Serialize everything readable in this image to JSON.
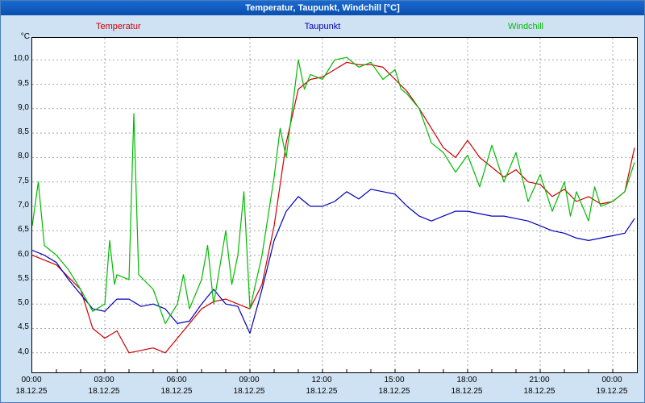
{
  "window": {
    "title": "Temperatur, Taupunkt, Windchill [°C]"
  },
  "chart_data": {
    "type": "line",
    "title": "Temperatur, Taupunkt, Windchill [°C]",
    "y_unit": "°C",
    "grid": "dashed",
    "legend_position": "top",
    "xlim": [
      0,
      25
    ],
    "ylim": [
      3.6,
      10.45
    ],
    "y_ticks": [
      {
        "value": 10.0,
        "label": "10,0"
      },
      {
        "value": 9.5,
        "label": "9,5"
      },
      {
        "value": 9.0,
        "label": "9,0"
      },
      {
        "value": 8.5,
        "label": "8,5"
      },
      {
        "value": 8.0,
        "label": "8,0"
      },
      {
        "value": 7.5,
        "label": "7,5"
      },
      {
        "value": 7.0,
        "label": "7,0"
      },
      {
        "value": 6.5,
        "label": "6,5"
      },
      {
        "value": 6.0,
        "label": "6,0"
      },
      {
        "value": 5.5,
        "label": "5,5"
      },
      {
        "value": 5.0,
        "label": "5,0"
      },
      {
        "value": 4.5,
        "label": "4,5"
      },
      {
        "value": 4.0,
        "label": "4,0"
      }
    ],
    "x_ticks": [
      {
        "hour": 0,
        "time": "00:00",
        "date": "18.12.25"
      },
      {
        "hour": 3,
        "time": "03:00",
        "date": "18.12.25"
      },
      {
        "hour": 6,
        "time": "06:00",
        "date": "18.12.25"
      },
      {
        "hour": 9,
        "time": "09:00",
        "date": "18.12.25"
      },
      {
        "hour": 12,
        "time": "12:00",
        "date": "18.12.25"
      },
      {
        "hour": 15,
        "time": "15:00",
        "date": "18.12.25"
      },
      {
        "hour": 18,
        "time": "18:00",
        "date": "18.12.25"
      },
      {
        "hour": 21,
        "time": "21:00",
        "date": "18.12.25"
      },
      {
        "hour": 24,
        "time": "00:00",
        "date": "19.12.25"
      }
    ],
    "series": [
      {
        "name": "Temperatur",
        "color": "#cc0000",
        "x": [
          0,
          0.5,
          1,
          1.5,
          2,
          2.5,
          3,
          3.5,
          4,
          4.5,
          5,
          5.5,
          6,
          6.5,
          7,
          7.5,
          8,
          8.5,
          9,
          9.5,
          10,
          10.5,
          11,
          11.5,
          12,
          12.5,
          13,
          13.5,
          14,
          14.5,
          15,
          15.5,
          16,
          16.5,
          17,
          17.5,
          18,
          18.5,
          19,
          19.5,
          20,
          20.5,
          21,
          21.5,
          22,
          22.5,
          23,
          23.5,
          24,
          24.5,
          24.9
        ],
        "y": [
          6.0,
          5.9,
          5.8,
          5.55,
          5.3,
          4.5,
          4.3,
          4.45,
          4.0,
          4.05,
          4.1,
          4.0,
          4.3,
          4.6,
          4.9,
          5.05,
          5.1,
          5.0,
          4.9,
          5.4,
          6.6,
          8.3,
          9.4,
          9.6,
          9.65,
          9.8,
          9.95,
          9.9,
          9.9,
          9.85,
          9.6,
          9.35,
          9.0,
          8.6,
          8.2,
          8.0,
          8.35,
          8.0,
          7.8,
          7.6,
          7.75,
          7.5,
          7.45,
          7.2,
          7.35,
          7.1,
          7.2,
          7.05,
          7.1,
          7.3,
          8.2
        ]
      },
      {
        "name": "Taupunkt",
        "color": "#0000bb",
        "x": [
          0,
          0.5,
          1,
          1.5,
          2,
          2.5,
          3,
          3.5,
          4,
          4.5,
          5,
          5.5,
          6,
          6.5,
          7,
          7.5,
          8,
          8.5,
          9,
          9.5,
          10,
          10.5,
          11,
          11.5,
          12,
          12.5,
          13,
          13.5,
          14,
          14.5,
          15,
          15.5,
          16,
          16.5,
          17,
          17.5,
          18,
          18.5,
          19,
          19.5,
          20,
          20.5,
          21,
          21.5,
          22,
          22.5,
          23,
          23.5,
          24,
          24.5,
          24.9
        ],
        "y": [
          6.1,
          6.0,
          5.85,
          5.5,
          5.2,
          4.9,
          4.85,
          5.1,
          5.1,
          4.95,
          5.0,
          4.9,
          4.6,
          4.65,
          5.0,
          5.3,
          5.0,
          4.95,
          4.4,
          5.3,
          6.3,
          6.9,
          7.2,
          7.0,
          7.0,
          7.1,
          7.3,
          7.15,
          7.35,
          7.3,
          7.25,
          7.0,
          6.8,
          6.7,
          6.8,
          6.9,
          6.9,
          6.85,
          6.8,
          6.8,
          6.75,
          6.7,
          6.6,
          6.5,
          6.45,
          6.35,
          6.3,
          6.35,
          6.4,
          6.45,
          6.75
        ]
      },
      {
        "name": "Windchill",
        "color": "#00bb00",
        "x": [
          0,
          0.25,
          0.5,
          1,
          1.5,
          2,
          2.5,
          3,
          3.2,
          3.4,
          3.5,
          4,
          4.2,
          4.4,
          5,
          5.5,
          6,
          6.25,
          6.5,
          7,
          7.25,
          7.5,
          8,
          8.25,
          8.5,
          8.75,
          9,
          9.5,
          10,
          10.25,
          10.5,
          11,
          11.25,
          11.5,
          12,
          12.5,
          13,
          13.5,
          14,
          14.5,
          15,
          15.25,
          15.5,
          16,
          16.5,
          17,
          17.5,
          18,
          18.5,
          19,
          19.5,
          20,
          20.5,
          21,
          21.5,
          22,
          22.25,
          22.5,
          23,
          23.25,
          23.5,
          24,
          24.5,
          24.9
        ],
        "y": [
          6.6,
          7.5,
          6.2,
          6.0,
          5.7,
          5.3,
          4.85,
          5.0,
          6.3,
          5.4,
          5.6,
          5.5,
          8.9,
          5.6,
          5.3,
          4.6,
          5.0,
          5.6,
          4.9,
          5.5,
          6.2,
          5.0,
          6.5,
          5.4,
          6.0,
          7.3,
          4.9,
          6.0,
          7.6,
          8.6,
          8.0,
          10.0,
          9.4,
          9.7,
          9.6,
          10.0,
          10.05,
          9.85,
          9.95,
          9.6,
          9.8,
          9.4,
          9.3,
          9.0,
          8.3,
          8.1,
          7.7,
          8.05,
          7.4,
          8.25,
          7.5,
          8.1,
          7.1,
          7.65,
          6.9,
          7.5,
          6.8,
          7.3,
          6.7,
          7.4,
          7.0,
          7.1,
          7.3,
          7.9
        ]
      }
    ]
  }
}
